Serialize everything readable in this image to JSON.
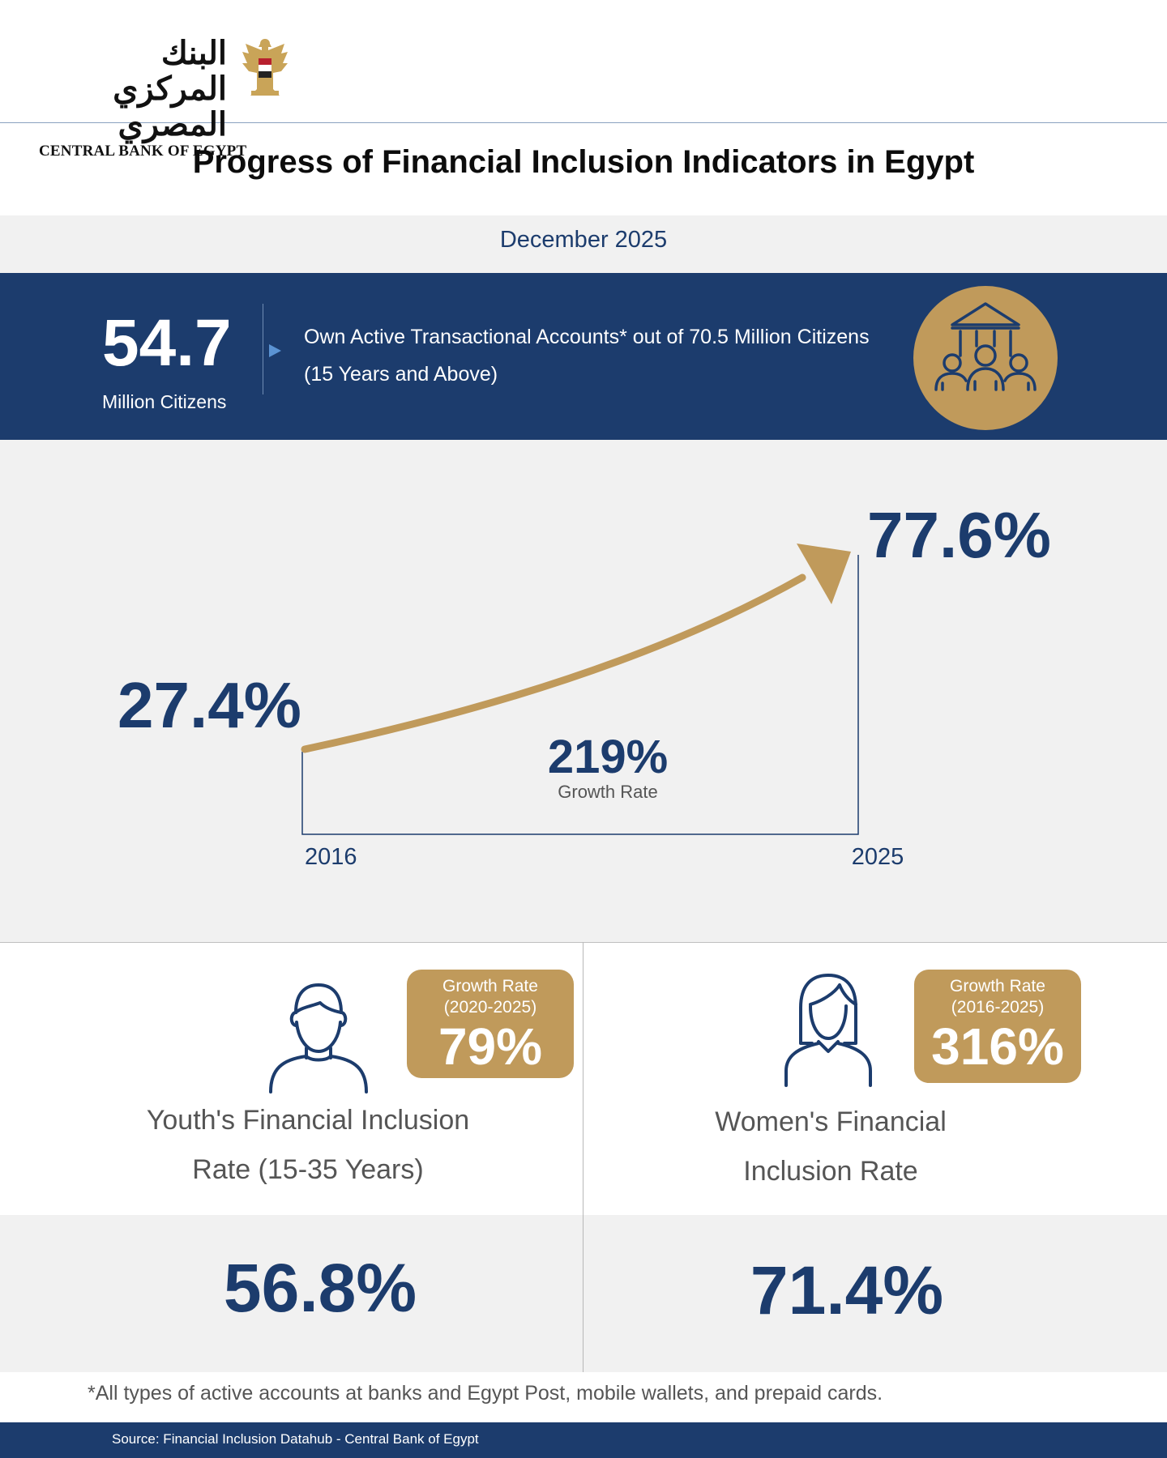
{
  "header": {
    "logo_arabic": "البنك المركزي المصري",
    "logo_english": "CENTRAL BANK OF EGYPT",
    "emblem_icon": "egypt-eagle-emblem-icon"
  },
  "title": "Progress of Financial Inclusion Indicators in Egypt",
  "date": "December 2025",
  "highlight": {
    "value": "54.7",
    "unit": "Million Citizens",
    "description_line1": "Own Active Transactional Accounts* out of 70.5 Million Citizens",
    "description_line2": "(15 Years and Above)",
    "icon": "bank-people-icon"
  },
  "chart_data": {
    "type": "line",
    "x": [
      "2016",
      "2025"
    ],
    "series": [
      {
        "values": [
          27.4,
          77.6
        ]
      }
    ],
    "data_labels": [
      "27.4%",
      "77.6%"
    ],
    "annotation": {
      "value": "219%",
      "label": "Growth Rate"
    }
  },
  "youth": {
    "icon": "man-icon",
    "growth_label": "Growth Rate",
    "growth_period": "(2020-2025)",
    "growth_value": "79%",
    "label_line1": "Youth's Financial Inclusion",
    "label_line2": "Rate (15-35 Years)",
    "value": "56.8%"
  },
  "women": {
    "icon": "woman-icon",
    "growth_label": "Growth Rate",
    "growth_period": "(2016-2025)",
    "growth_value": "316%",
    "label_line1": "Women's Financial",
    "label_line2": "Inclusion Rate",
    "value": "71.4%"
  },
  "footnote": "*All types of active accounts at banks and Egypt Post, mobile wallets, and prepaid cards.",
  "source": "Source: Financial Inclusion Datahub - Central Bank of Egypt",
  "colors": {
    "navy": "#1c3c6d",
    "gold": "#c09a5b",
    "light_gray": "#f1f1f1"
  }
}
